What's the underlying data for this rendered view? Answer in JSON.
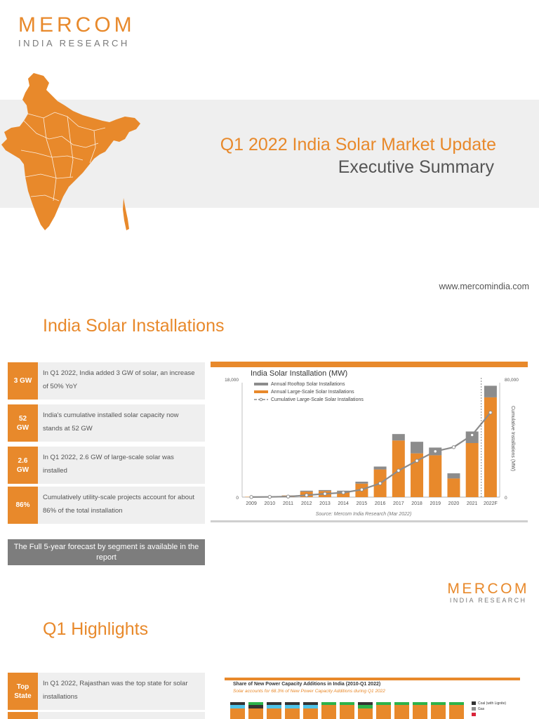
{
  "brand": {
    "logo": "MERCOM",
    "subtitle": "INDIA RESEARCH"
  },
  "hero": {
    "title": "Q1 2022 India Solar Market Update",
    "subtitle": "Executive Summary",
    "url": "www.mercomindia.com"
  },
  "installations": {
    "heading": "India Solar Installations",
    "stats": [
      {
        "badge": "3 GW",
        "text": "In Q1 2022, India added 3 GW of solar, an increase of 50% YoY"
      },
      {
        "badge": "52 GW",
        "text": "India's cumulative installed solar capacity now stands at 52 GW"
      },
      {
        "badge": "2.6 GW",
        "text": "In Q1 2022, 2.6 GW of large-scale solar was installed"
      },
      {
        "badge": "86%",
        "text": "Cumulatively utility-scale projects account for about 86%  of the total installation"
      }
    ],
    "cta": "The Full 5-year forecast by segment is available in the report"
  },
  "chart_data": [
    {
      "type": "bar",
      "title": "India Solar Installation (MW)",
      "categories": [
        "2009",
        "2010",
        "2011",
        "2012",
        "2013",
        "2014",
        "2015",
        "2016",
        "2017",
        "2018",
        "2019",
        "2020",
        "2021",
        "2022F"
      ],
      "series": [
        {
          "name": "Annual Rooftop Solar Installations",
          "values": [
            0,
            10,
            20,
            150,
            150,
            200,
            300,
            450,
            1000,
            1800,
            1200,
            800,
            1800,
            1800
          ],
          "color": "#8c8c8c"
        },
        {
          "name": "Annual Large-Scale Solar Installations",
          "values": [
            50,
            100,
            250,
            850,
            950,
            800,
            2100,
            4300,
            8800,
            6800,
            6500,
            2900,
            8400,
            15500
          ],
          "color": "#e8892b"
        },
        {
          "name": "Cumulative Large-Scale Solar Installations",
          "values": [
            60,
            160,
            400,
            1300,
            2300,
            3100,
            5200,
            9500,
            18300,
            25100,
            31600,
            34500,
            42900,
            58400
          ],
          "color": "#8c8c8c",
          "axis": "right"
        }
      ],
      "ylim": [
        0,
        18000
      ],
      "y2lim": [
        0,
        80000
      ],
      "ylabel": "",
      "y2label": "Cumulative Installations (MW)",
      "y_ticks": [
        "0",
        "18,000"
      ],
      "y2_ticks": [
        "0",
        "80,000"
      ],
      "forecast_marker": "2022F",
      "source": "Source: Mercom India Research (Mar 2022)"
    },
    {
      "type": "bar",
      "title": "Share of New Power Capacity Additions in India (2010-Q1 2022)",
      "subtitle": "Solar accounts for 68.3% of New Power Capacity Additions during Q1 2022",
      "legend": [
        "Coal (with Lignite)",
        "Gas"
      ],
      "colors": {
        "coal": "#333333",
        "gas": "#8c8c8c",
        "solar": "#e8892b",
        "wind": "#4fc3e8",
        "hydro": "#2db34a",
        "nuclear": "#d9243a"
      }
    }
  ],
  "highlights": {
    "heading": "Q1 Highlights",
    "stats": [
      {
        "badge": "Top State",
        "text": "In Q1 2022, Rajasthan was the top state for solar installations"
      }
    ]
  },
  "colors": {
    "accent": "#e8892b",
    "gray_panel": "#efefef",
    "cta_gray": "#7d7d7d"
  }
}
